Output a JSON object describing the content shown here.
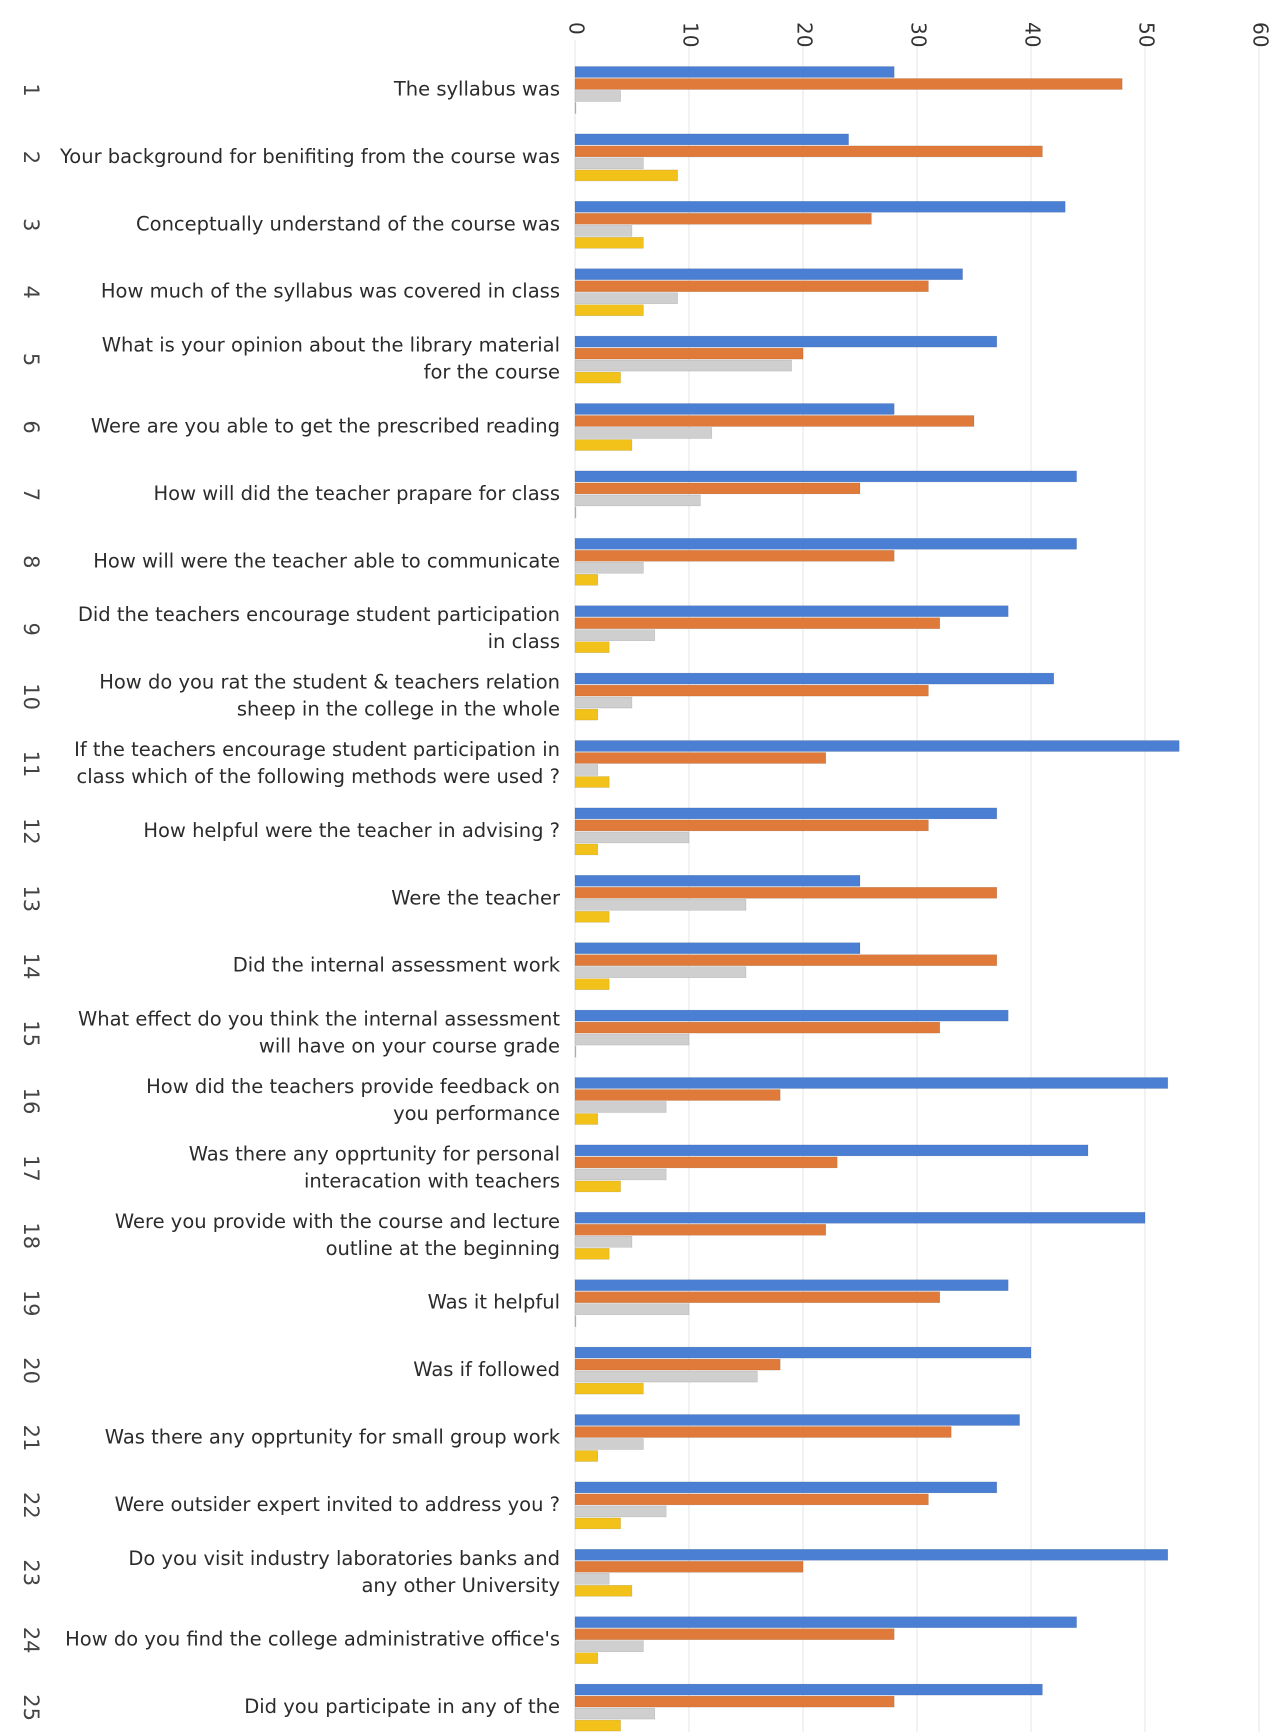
{
  "chart_data": {
    "type": "bar",
    "orientation": "horizontal",
    "xlim": [
      0,
      60
    ],
    "x_ticks": [
      "0",
      "10",
      "20",
      "30",
      "40",
      "50",
      "60"
    ],
    "grid": true,
    "legend": "none",
    "row_numbers": [
      "1",
      "2",
      "3",
      "4",
      "5",
      "6",
      "7",
      "8",
      "9",
      "10",
      "11",
      "12",
      "13",
      "14",
      "15",
      "16",
      "17",
      "18",
      "19",
      "20",
      "21",
      "22",
      "23",
      "24",
      "25"
    ],
    "categories": [
      [
        "The syllabus was"
      ],
      [
        "Your background for benifiting from the course was"
      ],
      [
        "Conceptually understand of the course was"
      ],
      [
        "How much of the syllabus was covered in class"
      ],
      [
        "What is your opinion about the library material",
        "for the course"
      ],
      [
        "Were are you able to get the prescribed reading"
      ],
      [
        "How will did the teacher prapare for class"
      ],
      [
        "How will were the teacher able to communicate"
      ],
      [
        "Did the teachers encourage student participation",
        "in class"
      ],
      [
        "How do you rat the student & teachers relation",
        "sheep in the college in the whole"
      ],
      [
        "If the teachers encourage student participation  in",
        "class which of the following methods were used ?"
      ],
      [
        "How helpful were  the teacher in advising ?"
      ],
      [
        "Were the teacher"
      ],
      [
        "Did the internal assessment work"
      ],
      [
        "What effect do you think the internal assessment",
        "will have on your course grade"
      ],
      [
        "How did the teachers provide feedback on",
        "you performance"
      ],
      [
        "Was there any opprtunity for personal",
        "interacation with teachers"
      ],
      [
        "Were you provide with the course and lecture",
        "outline at the beginning"
      ],
      [
        "Was it helpful"
      ],
      [
        "Was if followed"
      ],
      [
        "Was there any opprtunity for small group work"
      ],
      [
        "Were outsider expert invited to address you ?"
      ],
      [
        "Do you visit industry  laboratories banks and",
        "any other University"
      ],
      [
        "How do you find the college administrative office's"
      ],
      [
        "Did you participate in any of the"
      ]
    ],
    "series": [
      {
        "color": "#4a7fd4",
        "values": [
          28,
          24,
          43,
          34,
          37,
          28,
          44,
          44,
          38,
          42,
          53,
          37,
          25,
          25,
          38,
          52,
          45,
          50,
          38,
          40,
          39,
          37,
          52,
          44,
          41
        ]
      },
      {
        "color": "#e07a3a",
        "values": [
          48,
          41,
          26,
          31,
          20,
          35,
          25,
          28,
          32,
          31,
          22,
          31,
          37,
          37,
          32,
          18,
          23,
          22,
          32,
          18,
          33,
          31,
          20,
          28,
          28
        ]
      },
      {
        "color": "#cfcfcf",
        "values": [
          4,
          6,
          5,
          9,
          19,
          12,
          11,
          6,
          7,
          5,
          2,
          10,
          15,
          15,
          10,
          8,
          8,
          5,
          10,
          16,
          6,
          8,
          3,
          6,
          7
        ]
      },
      {
        "color": "#f2c21b",
        "values": [
          0,
          9,
          6,
          6,
          4,
          5,
          0,
          2,
          3,
          2,
          3,
          2,
          3,
          3,
          0,
          2,
          4,
          3,
          0,
          6,
          2,
          4,
          5,
          2,
          4
        ]
      }
    ]
  }
}
